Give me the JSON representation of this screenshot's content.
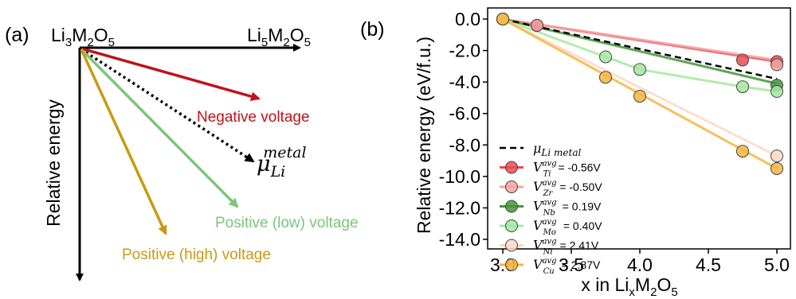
{
  "panel_a": {
    "label": "(a)",
    "origin_label": {
      "pre": "Li",
      "s1": "3",
      "mid": "M",
      "s2": "2",
      "post": "O",
      "s3": "5"
    },
    "end_label": {
      "pre": "Li",
      "s1": "5",
      "mid": "M",
      "s2": "2",
      "post": "O",
      "s3": "5"
    },
    "y_label": "Relative energy",
    "arrows": [
      {
        "label": "Negative voltage",
        "color": "#c0121a"
      },
      {
        "label_main": "μ",
        "label_sub": "Li",
        "label_sup": "metal",
        "color": "#000000"
      },
      {
        "label": "Positive (low) voltage",
        "color": "#7cc57a"
      },
      {
        "label": "Positive (high) voltage",
        "color": "#c99a11"
      }
    ]
  },
  "chart_data": {
    "type": "line",
    "panel_label": "(b)",
    "xlabel": {
      "pre": "x in Li",
      "s1": "x",
      "mid": "M",
      "s2": "2",
      "post": "O",
      "s3": "5"
    },
    "ylabel": "Relative energy (eV/f.u.)",
    "xlim": [
      3.0,
      5.0
    ],
    "ylim": [
      -14.0,
      0.0
    ],
    "x_ticks": [
      "3.0",
      "3.5",
      "4.0",
      "4.5",
      "5.0"
    ],
    "y_ticks": [
      "0.0",
      "-2.0",
      "-4.0",
      "-6.0",
      "-8.0",
      "-10.0",
      "-12.0",
      "-14.0"
    ],
    "reference": {
      "name_main": "μ",
      "name_sub": "Li metal",
      "x": [
        3.0,
        5.0
      ],
      "y": [
        0.0,
        -3.8
      ],
      "color": "#000000"
    },
    "series": [
      {
        "sym": "V",
        "sup": "avg",
        "sub": "Ti",
        "value": "= -0.56V",
        "color": "#ec4b54",
        "points": [
          [
            3.0,
            0.0
          ],
          [
            3.25,
            -0.4
          ],
          [
            4.75,
            -2.6
          ],
          [
            5.0,
            -2.7
          ]
        ],
        "fit": [
          [
            3.0,
            0.0
          ],
          [
            5.0,
            -2.7
          ]
        ]
      },
      {
        "sym": "V",
        "sup": "avg",
        "sub": "Zr",
        "value": "= -0.50V",
        "color": "#f4a3a3",
        "points": [
          [
            3.0,
            0.0
          ],
          [
            3.25,
            -0.4
          ],
          [
            5.0,
            -2.9
          ]
        ],
        "fit": [
          [
            3.0,
            0.0
          ],
          [
            5.0,
            -2.6
          ]
        ]
      },
      {
        "sym": "V",
        "sup": "avg",
        "sub": "Nb",
        "value": "= 0.19V",
        "color": "#43953a",
        "points": [
          [
            3.0,
            0.0
          ],
          [
            5.0,
            -4.2
          ]
        ],
        "fit": [
          [
            3.0,
            0.0
          ],
          [
            5.0,
            -4.1
          ]
        ]
      },
      {
        "sym": "V",
        "sup": "avg",
        "sub": "Mo",
        "value": "= 0.40V",
        "color": "#a6e8a0",
        "points": [
          [
            3.0,
            0.0
          ],
          [
            3.75,
            -2.4
          ],
          [
            4.0,
            -3.2
          ],
          [
            4.75,
            -4.3
          ],
          [
            5.0,
            -4.6
          ]
        ],
        "fit": [
          [
            3.0,
            0.0
          ],
          [
            3.75,
            -2.4
          ],
          [
            4.0,
            -3.2
          ],
          [
            4.75,
            -4.3
          ],
          [
            5.0,
            -4.6
          ]
        ]
      },
      {
        "sym": "V",
        "sup": "avg",
        "sub": "Ni",
        "value": "= 2.41V",
        "color": "#fbd9c5",
        "points": [
          [
            3.0,
            0.0
          ],
          [
            5.0,
            -8.7
          ]
        ],
        "fit": [
          [
            3.0,
            0.0
          ],
          [
            5.0,
            -8.7
          ]
        ]
      },
      {
        "sym": "V",
        "sup": "avg",
        "sub": "Cu",
        "value": "= 2.87V",
        "color": "#f6b53e",
        "points": [
          [
            3.0,
            0.0
          ],
          [
            3.75,
            -3.7
          ],
          [
            4.0,
            -4.9
          ],
          [
            4.75,
            -8.4
          ],
          [
            5.0,
            -9.5
          ]
        ],
        "fit": [
          [
            3.0,
            0.0
          ],
          [
            5.0,
            -9.5
          ]
        ]
      }
    ]
  }
}
